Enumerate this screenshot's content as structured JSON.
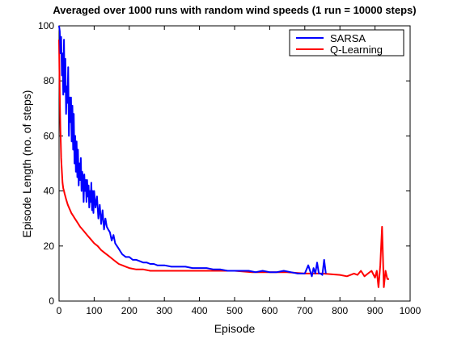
{
  "chart_data": {
    "type": "line",
    "title": "Averaged over 1000 runs with random wind speeds (1 run = 10000 steps)",
    "xlabel": "Episode",
    "ylabel": "Episode Length (no. of steps)",
    "xlim": [
      0,
      1000
    ],
    "ylim": [
      0,
      100
    ],
    "xticks": [
      0,
      100,
      200,
      300,
      400,
      500,
      600,
      700,
      800,
      900,
      1000
    ],
    "yticks": [
      0,
      20,
      40,
      60,
      80,
      100
    ],
    "grid": false,
    "legend_position": "top-right",
    "series": [
      {
        "name": "SARSA",
        "color": "#0000ff",
        "x": [
          0,
          2,
          4,
          6,
          8,
          10,
          12,
          14,
          16,
          18,
          20,
          22,
          24,
          26,
          28,
          30,
          32,
          34,
          36,
          38,
          40,
          42,
          44,
          46,
          48,
          50,
          52,
          54,
          56,
          58,
          60,
          62,
          64,
          66,
          68,
          70,
          72,
          74,
          76,
          78,
          80,
          82,
          84,
          86,
          88,
          90,
          92,
          94,
          96,
          98,
          100,
          104,
          108,
          112,
          116,
          120,
          124,
          128,
          132,
          136,
          140,
          145,
          150,
          155,
          160,
          165,
          170,
          175,
          180,
          190,
          200,
          210,
          220,
          230,
          240,
          250,
          260,
          270,
          280,
          290,
          300,
          320,
          340,
          360,
          380,
          400,
          420,
          440,
          460,
          480,
          500,
          520,
          540,
          560,
          580,
          600,
          620,
          640,
          660,
          680,
          700,
          710,
          720,
          725,
          730,
          735,
          740,
          745,
          750,
          755,
          760
        ],
        "y": [
          100,
          98,
          90,
          96,
          82,
          90,
          75,
          95,
          76,
          88,
          68,
          78,
          72,
          85,
          60,
          74,
          65,
          74,
          58,
          71,
          55,
          68,
          50,
          60,
          47,
          58,
          45,
          55,
          42,
          50,
          44,
          52,
          40,
          47,
          45,
          36,
          46,
          40,
          44,
          36,
          44,
          38,
          42,
          34,
          40,
          36,
          43,
          33,
          40,
          32,
          40,
          34,
          38,
          30,
          35,
          28,
          33,
          26,
          30,
          27,
          26,
          25,
          22,
          24,
          21,
          20,
          19,
          18,
          17,
          16,
          16,
          15,
          15,
          14.5,
          14,
          14,
          13.5,
          13.5,
          13,
          13,
          13,
          12.5,
          12.5,
          12.5,
          12,
          12,
          12,
          11.5,
          11.5,
          11,
          11,
          11,
          11,
          10.5,
          11,
          10.5,
          10.5,
          11,
          10.5,
          10,
          10,
          13,
          9,
          12,
          10,
          14,
          10,
          10,
          9.5,
          15,
          10
        ]
      },
      {
        "name": "Q-Learning",
        "color": "#ff0000",
        "x": [
          0,
          1,
          2,
          3,
          4,
          5,
          6,
          8,
          10,
          12,
          14,
          16,
          18,
          20,
          25,
          30,
          35,
          40,
          45,
          50,
          55,
          60,
          70,
          80,
          90,
          100,
          110,
          120,
          130,
          140,
          150,
          160,
          170,
          180,
          190,
          200,
          220,
          240,
          260,
          280,
          300,
          350,
          400,
          450,
          500,
          550,
          600,
          650,
          700,
          750,
          800,
          820,
          840,
          850,
          860,
          870,
          880,
          890,
          900,
          905,
          910,
          915,
          920,
          925,
          930,
          935,
          940
        ],
        "y": [
          95,
          85,
          75,
          68,
          62,
          57,
          52,
          47,
          43,
          41,
          40,
          39,
          38,
          37,
          35,
          33.5,
          32,
          31,
          30,
          29,
          28,
          27,
          25.5,
          24,
          22.5,
          21,
          20,
          18.5,
          17.5,
          16.5,
          15.5,
          14.5,
          13.5,
          13,
          12.5,
          12,
          11.5,
          11.5,
          11,
          11,
          11,
          11,
          11,
          11,
          11,
          10.5,
          10.5,
          10.5,
          10,
          10,
          9.5,
          9,
          10,
          9.5,
          11,
          9,
          10,
          11,
          8.5,
          11,
          5,
          13,
          27,
          5,
          11,
          8,
          8
        ]
      }
    ]
  }
}
